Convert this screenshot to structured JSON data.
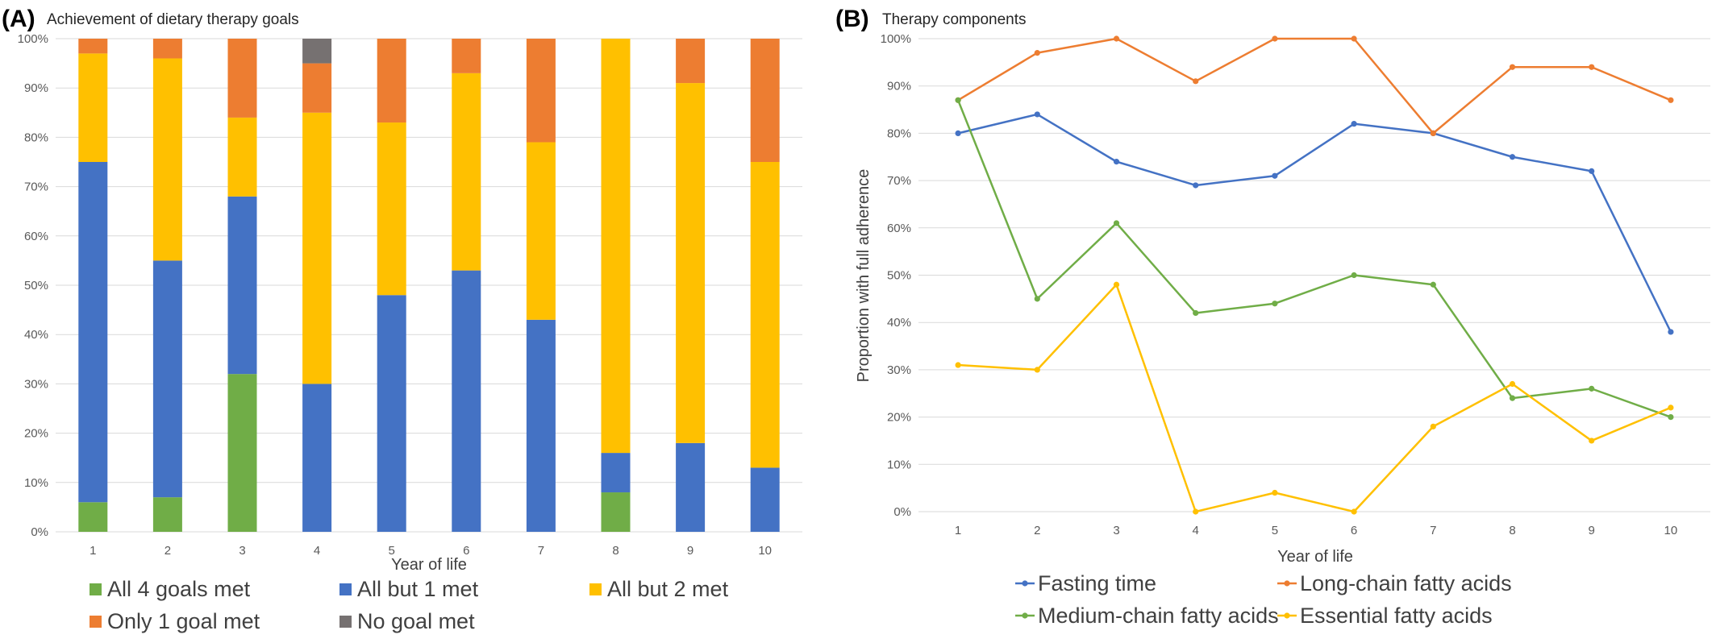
{
  "chart_data": [
    {
      "panel": "(A)",
      "type": "bar",
      "stacked": true,
      "title": "Achievement of dietary therapy goals",
      "xlabel": "Year of life",
      "ylabel": "",
      "ylim": [
        0,
        100
      ],
      "y_ticks": [
        "0%",
        "10%",
        "20%",
        "30%",
        "40%",
        "50%",
        "60%",
        "70%",
        "80%",
        "90%",
        "100%"
      ],
      "categories": [
        "1",
        "2",
        "3",
        "4",
        "5",
        "6",
        "7",
        "8",
        "9",
        "10"
      ],
      "legend_position": "bottom",
      "series": [
        {
          "name": "All 4 goals met",
          "color": "#70ad47",
          "values": [
            6,
            7,
            32,
            0,
            0,
            0,
            0,
            8,
            0,
            0
          ]
        },
        {
          "name": "All but 1 met",
          "color": "#4472c4",
          "values": [
            69,
            48,
            36,
            30,
            48,
            53,
            43,
            8,
            18,
            13
          ]
        },
        {
          "name": "All but 2 met",
          "color": "#ffc000",
          "values": [
            22,
            41,
            16,
            55,
            35,
            40,
            36,
            84,
            73,
            62
          ]
        },
        {
          "name": "Only 1 goal met",
          "color": "#ed7d31",
          "values": [
            3,
            4,
            16,
            10,
            17,
            7,
            21,
            0,
            9,
            25
          ]
        },
        {
          "name": "No goal met",
          "color": "#767171",
          "values": [
            0,
            0,
            0,
            5,
            0,
            0,
            0,
            0,
            0,
            0
          ]
        }
      ]
    },
    {
      "panel": "(B)",
      "type": "line",
      "title": "Therapy components",
      "xlabel": "Year of life",
      "ylabel": "Proportion with full adherence",
      "ylim": [
        0,
        100
      ],
      "y_ticks": [
        "0%",
        "10%",
        "20%",
        "30%",
        "40%",
        "50%",
        "60%",
        "70%",
        "80%",
        "90%",
        "100%"
      ],
      "x": [
        "1",
        "2",
        "3",
        "4",
        "5",
        "6",
        "7",
        "8",
        "9",
        "10"
      ],
      "legend_position": "bottom",
      "series": [
        {
          "name": "Fasting time",
          "color": "#4472c4",
          "values": [
            80,
            84,
            74,
            69,
            71,
            82,
            80,
            75,
            72,
            38
          ]
        },
        {
          "name": "Long-chain fatty acids",
          "color": "#ed7d31",
          "values": [
            87,
            97,
            100,
            91,
            100,
            100,
            80,
            94,
            94,
            87
          ]
        },
        {
          "name": "Medium-chain fatty acids",
          "color": "#70ad47",
          "values": [
            87,
            45,
            61,
            42,
            44,
            50,
            48,
            24,
            26,
            20
          ]
        },
        {
          "name": "Essential fatty acids",
          "color": "#ffc000",
          "values": [
            31,
            30,
            48,
            0,
            4,
            0,
            18,
            27,
            15,
            22
          ]
        }
      ]
    }
  ]
}
